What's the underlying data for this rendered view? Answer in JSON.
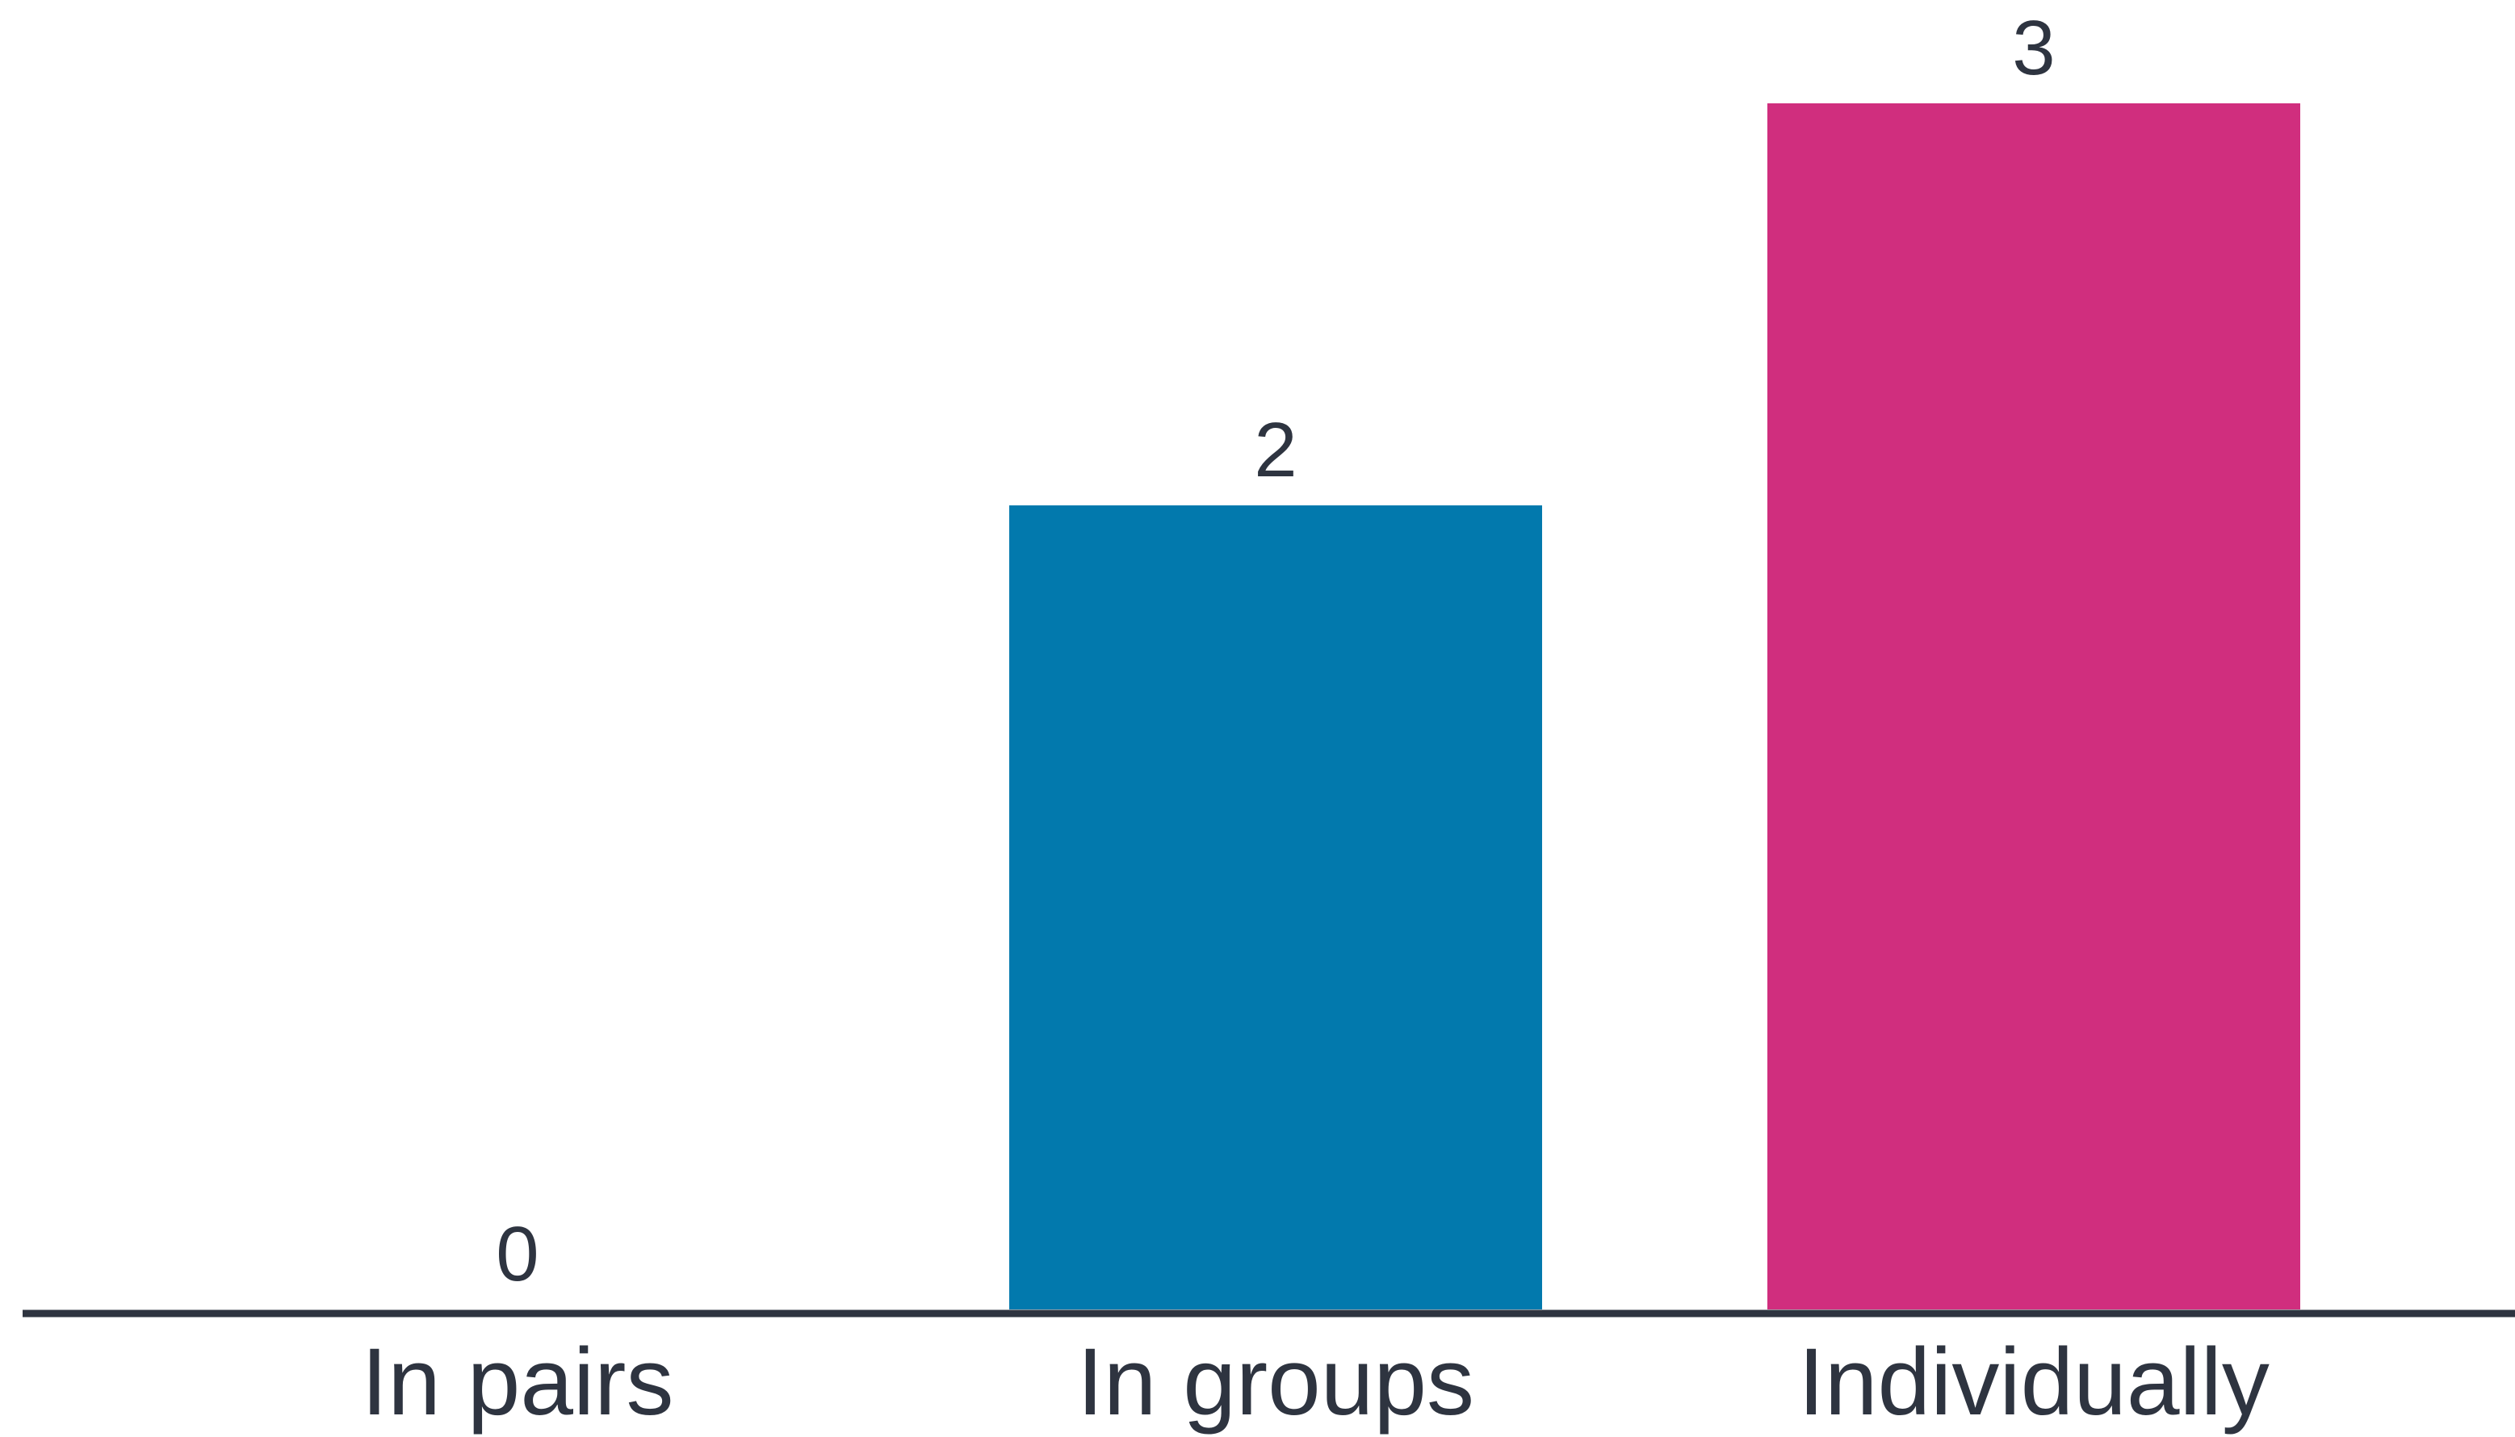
{
  "chart_data": {
    "type": "bar",
    "categories": [
      "In pairs",
      "In groups",
      "Individually"
    ],
    "values": [
      0,
      2,
      3
    ],
    "colors": [
      "#0279ad",
      "#0279ad",
      "#d02e7e"
    ],
    "axis_color": "#2e3440",
    "text_color": "#2e3440",
    "ylim": [
      0,
      3
    ],
    "grid": false,
    "legend": "none",
    "data_labels": true
  }
}
